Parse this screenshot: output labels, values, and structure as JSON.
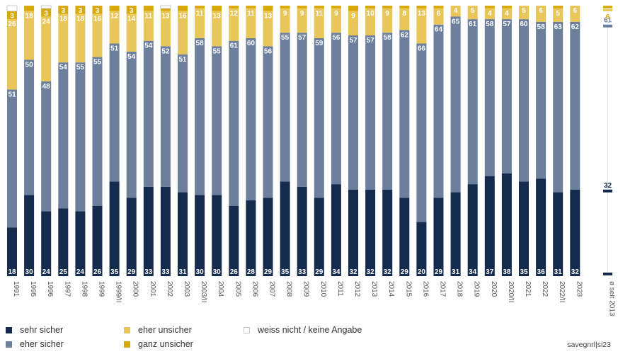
{
  "chart_data": {
    "type": "bar",
    "stacked": true,
    "orientation": "vertical",
    "title": "",
    "xlabel": "",
    "ylabel": "",
    "ylim": [
      0,
      100
    ],
    "grid": false,
    "legend_position": "bottom-left",
    "categories": [
      "1991",
      "1995",
      "1996",
      "1997",
      "1998",
      "1999",
      "1999/II",
      "2000",
      "2001",
      "2002",
      "2003",
      "2003/II",
      "2004",
      "2005",
      "2006",
      "2007",
      "2008",
      "2009",
      "2010",
      "2011",
      "2012",
      "2013",
      "2014",
      "2015",
      "2016",
      "2017",
      "2018",
      "2019",
      "2020",
      "2020/II",
      "2021",
      "2022",
      "2022/II",
      "2023"
    ],
    "series": [
      {
        "name": "sehr sicher",
        "color": "#152b4d",
        "label_color": "#ffffff",
        "values": [
          18,
          30,
          24,
          25,
          24,
          26,
          35,
          29,
          33,
          33,
          31,
          30,
          30,
          26,
          28,
          29,
          35,
          33,
          29,
          34,
          32,
          32,
          32,
          29,
          20,
          29,
          31,
          34,
          37,
          38,
          35,
          36,
          31,
          32
        ],
        "labels": [
          "18",
          "30",
          "24",
          "25",
          "24",
          "26",
          "35",
          "29",
          "33",
          "33",
          "31",
          "30",
          "30",
          "26",
          "28",
          "29",
          "35",
          "33",
          "29",
          "34",
          "32",
          "32",
          "32",
          "29",
          "20",
          "29",
          "31",
          "34",
          "37",
          "38",
          "35",
          "36",
          "31",
          "32"
        ]
      },
      {
        "name": "eher sicher",
        "color": "#6c7f9c",
        "label_color": "#ffffff",
        "values": [
          51,
          50,
          48,
          54,
          55,
          55,
          51,
          54,
          54,
          52,
          51,
          58,
          55,
          61,
          60,
          56,
          55,
          57,
          59,
          56,
          57,
          57,
          58,
          62,
          66,
          64,
          65,
          61,
          58,
          57,
          60,
          58,
          63,
          62
        ],
        "labels": [
          "51",
          "50",
          "48",
          "54",
          "55",
          "55",
          "51",
          "54",
          "54",
          "52",
          "51",
          "58",
          "55",
          "61",
          "60",
          "56",
          "55",
          "57",
          "59",
          "56",
          "57",
          "57",
          "58",
          "62",
          "66",
          "64",
          "65",
          "61",
          "58",
          "57",
          "60",
          "58",
          "63",
          "62"
        ]
      },
      {
        "name": "eher unsicher",
        "color": "#e8c65a",
        "label_color": "#ffffff",
        "values": [
          26,
          18,
          24,
          18,
          18,
          16,
          12,
          14,
          11,
          13,
          16,
          11,
          13,
          12,
          11,
          13,
          9,
          9,
          11,
          9,
          9,
          10,
          9,
          8,
          13,
          6,
          4,
          5,
          4,
          4,
          5,
          6,
          5,
          6
        ],
        "labels": [
          "26",
          "18",
          "24",
          "18",
          "18",
          "16",
          "12",
          "14",
          "11",
          "13",
          "16",
          "11",
          "13",
          "12",
          "11",
          "13",
          "9",
          "9",
          "11",
          "9",
          "9",
          "10",
          "9",
          "8",
          "13",
          "6",
          "4",
          "5",
          "4",
          "4",
          "5",
          "6",
          "5",
          "6"
        ]
      },
      {
        "name": "ganz unsicher",
        "color": "#d9a90a",
        "label_color": "#ffffff",
        "values": [
          3,
          2,
          3,
          3,
          3,
          3,
          2,
          3,
          2,
          1,
          2,
          1,
          2,
          1,
          1,
          2,
          1,
          1,
          1,
          1,
          2,
          1,
          1,
          1,
          1,
          1,
          0,
          0,
          1,
          1,
          0,
          0,
          1,
          0
        ],
        "labels": [
          "3",
          "",
          "3",
          "3",
          "3",
          "3",
          "",
          "3",
          "",
          "",
          "",
          "",
          "",
          "",
          "",
          "",
          "",
          "",
          "",
          "",
          "",
          "",
          "",
          "",
          "",
          "",
          "",
          "",
          "",
          "",
          "",
          "",
          "",
          ""
        ]
      },
      {
        "name": "weiss nicht / keine Angabe",
        "color": "#ffffff",
        "border": "#c8c8c8",
        "values": [
          2,
          0,
          1,
          0,
          0,
          0,
          0,
          0,
          0,
          1,
          0,
          0,
          0,
          0,
          0,
          0,
          0,
          0,
          0,
          0,
          0,
          0,
          0,
          0,
          0,
          0,
          0,
          0,
          0,
          0,
          0,
          0,
          0,
          0
        ],
        "labels": [
          "",
          "",
          "",
          "",
          "",
          "",
          "",
          "",
          "",
          "",
          "",
          "",
          "",
          "",
          "",
          "",
          "",
          "",
          "",
          "",
          "",
          "",
          "",
          "",
          "",
          "",
          "",
          "",
          "",
          "",
          "",
          "",
          "",
          ""
        ]
      }
    ],
    "average": {
      "label": "ø seit 2013",
      "values": {
        "sehr sicher": 32,
        "eher sicher": 61,
        "eher unsicher": 6,
        "ganz unsicher": 1
      },
      "labels": {
        "sehr sicher": "32",
        "eher sicher": "61",
        "eher unsicher": "6"
      }
    }
  },
  "legend": {
    "items": [
      {
        "label": "sehr sicher",
        "color": "#152b4d"
      },
      {
        "label": "eher sicher",
        "color": "#6c7f9c"
      },
      {
        "label": "eher unsicher",
        "color": "#e8c65a"
      },
      {
        "label": "ganz unsicher",
        "color": "#d9a90a"
      },
      {
        "label": "weiss nicht / keine Angabe",
        "color": "#ffffff"
      }
    ]
  },
  "source": "savegnrl|si23"
}
